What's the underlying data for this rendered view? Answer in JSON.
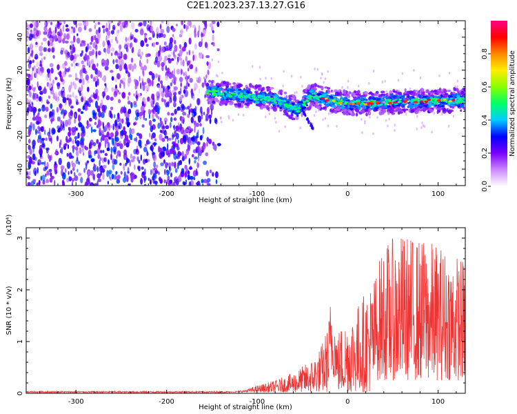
{
  "title": "C2E1.2023.237.13.27.G16",
  "chart_data": [
    {
      "type": "heatmap",
      "name": "spectrogram",
      "xlabel": "Height of straight line (km)",
      "ylabel": "Frequency (Hz)",
      "xlim": [
        -355,
        130
      ],
      "ylim": [
        -50,
        50
      ],
      "x_ticks": [
        -300,
        -200,
        -100,
        0,
        100
      ],
      "y_ticks": [
        -40,
        -20,
        0,
        20,
        40
      ],
      "colorbar": {
        "label": "Normalized spectral amplitude",
        "range": [
          0,
          1
        ],
        "ticks": [
          "0.0",
          "0.2",
          "0.4",
          "0.6",
          "0.8"
        ],
        "stops": [
          "#ffffff",
          "#cc88ff",
          "#7a00ff",
          "#0000ff",
          "#00ccff",
          "#00ff66",
          "#88ff00",
          "#ffee00",
          "#ff8800",
          "#ff0000",
          "#ff0088"
        ]
      },
      "regions": {
        "noise_x_range": [
          -355,
          -140
        ],
        "signal_x_range": [
          -155,
          130
        ],
        "signal_center_track": [
          [
            -155,
            7
          ],
          [
            -120,
            5
          ],
          [
            -90,
            3
          ],
          [
            -70,
            0
          ],
          [
            -55,
            -4
          ],
          [
            -40,
            5
          ],
          [
            -20,
            2
          ],
          [
            0,
            0
          ],
          [
            30,
            0
          ],
          [
            60,
            1
          ],
          [
            100,
            1.5
          ],
          [
            130,
            2
          ]
        ]
      }
    },
    {
      "type": "line",
      "name": "snr",
      "xlabel": "Height of straight line (km)",
      "ylabel": "SNR (10 * v/v)",
      "y_multiplier": "(x10⁴)",
      "xlim": [
        -355,
        130
      ],
      "ylim": [
        0,
        3.2
      ],
      "x_ticks": [
        -300,
        -200,
        -100,
        0,
        100
      ],
      "y_ticks": [
        0,
        1,
        2,
        3
      ],
      "series_color": "#ee3333",
      "envelope": [
        [
          -355,
          0.03
        ],
        [
          -130,
          0.03
        ],
        [
          -115,
          0.06
        ],
        [
          -100,
          0.15
        ],
        [
          -80,
          0.25
        ],
        [
          -60,
          0.4
        ],
        [
          -40,
          0.65
        ],
        [
          -30,
          0.9
        ],
        [
          -22,
          1.3
        ],
        [
          -18,
          2.0
        ],
        [
          -12,
          1.2
        ],
        [
          0,
          1.5
        ],
        [
          10,
          1.7
        ],
        [
          30,
          2.3
        ],
        [
          40,
          2.9
        ],
        [
          60,
          3.1
        ],
        [
          80,
          3.0
        ],
        [
          100,
          2.9
        ],
        [
          120,
          2.7
        ],
        [
          130,
          2.6
        ]
      ]
    }
  ]
}
